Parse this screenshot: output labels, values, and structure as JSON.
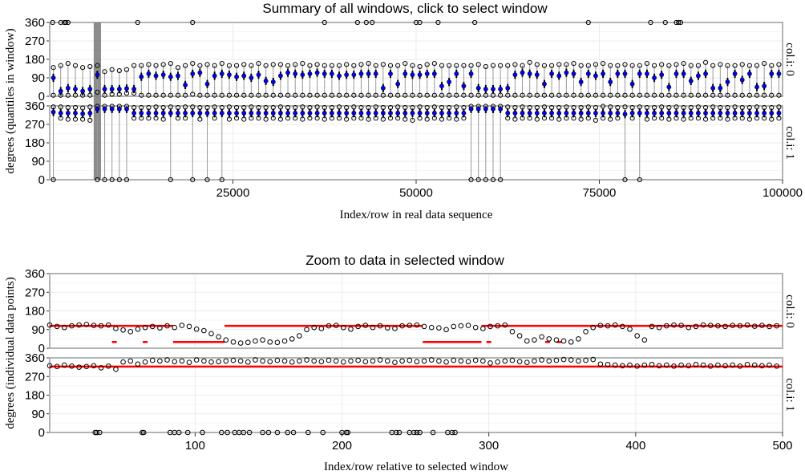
{
  "chart_data": [
    {
      "type": "box-summary",
      "title": "Summary of all windows, click to select window",
      "xlabel": "Index/row in real data sequence",
      "ylabel": "degrees (quantiles in window)",
      "xlim": [
        0,
        100000
      ],
      "ylim": [
        0,
        360
      ],
      "x_ticks": [
        "25000",
        "50000",
        "75000",
        "100000"
      ],
      "x_tick_values": [
        25000,
        50000,
        75000,
        100000
      ],
      "y_ticks": [
        "0",
        "90",
        "180",
        "270",
        "360"
      ],
      "y_tick_values": [
        0,
        90,
        180,
        270,
        360
      ],
      "grid": true,
      "selected_window": [
        6000,
        7000
      ],
      "window_step": 1000,
      "colors": {
        "median": "#0000ff",
        "whisker": "#999999",
        "selection": "#7f7f7f",
        "frame": "#b3b3b3"
      },
      "panels": [
        {
          "strip": "col.i: 0",
          "min": [
            5,
            5,
            5,
            5,
            5,
            5,
            20,
            5,
            10,
            10,
            15,
            15,
            5,
            5,
            5,
            5,
            5,
            5,
            5,
            10,
            5,
            5,
            5,
            5,
            5,
            5,
            5,
            5,
            5,
            5,
            5,
            5,
            5,
            5,
            5,
            5,
            5,
            5,
            5,
            5,
            5,
            5,
            5,
            5,
            5,
            5,
            5,
            5,
            5,
            5,
            5,
            5,
            5,
            5,
            5,
            5,
            5,
            5,
            5,
            5,
            5,
            5,
            5,
            5,
            5,
            5,
            5,
            5,
            5,
            5,
            5,
            5,
            5,
            5,
            5,
            5,
            5,
            5,
            5,
            5,
            5,
            5,
            5,
            5,
            5,
            5,
            5,
            5,
            5,
            5,
            5,
            5,
            5,
            5,
            5,
            5,
            5,
            5,
            5,
            5
          ],
          "median": [
            90,
            25,
            40,
            35,
            25,
            35,
            105,
            35,
            35,
            35,
            38,
            35,
            95,
            110,
            100,
            105,
            95,
            100,
            55,
            110,
            115,
            60,
            100,
            110,
            105,
            95,
            100,
            90,
            105,
            75,
            70,
            100,
            115,
            110,
            105,
            110,
            115,
            110,
            110,
            100,
            105,
            105,
            110,
            110,
            110,
            40,
            110,
            60,
            110,
            105,
            105,
            110,
            110,
            50,
            70,
            110,
            50,
            110,
            40,
            35,
            35,
            35,
            40,
            105,
            115,
            110,
            105,
            60,
            110,
            100,
            115,
            110,
            70,
            110,
            100,
            110,
            70,
            110,
            110,
            60,
            110,
            110,
            90,
            105,
            45,
            110,
            110,
            75,
            100,
            110,
            40,
            40,
            70,
            110,
            80,
            110,
            45,
            50,
            110,
            110
          ],
          "max": [
            140,
            150,
            160,
            150,
            140,
            145,
            150,
            120,
            130,
            125,
            130,
            150,
            150,
            155,
            150,
            155,
            160,
            140,
            150,
            160,
            150,
            155,
            150,
            160,
            150,
            150,
            155,
            150,
            160,
            150,
            155,
            155,
            150,
            155,
            160,
            150,
            155,
            150,
            150,
            150,
            155,
            150,
            155,
            160,
            150,
            155,
            150,
            150,
            160,
            150,
            145,
            155,
            160,
            150,
            150,
            150,
            150,
            150,
            155,
            145,
            150,
            150,
            150,
            155,
            150,
            165,
            155,
            150,
            150,
            155,
            155,
            160,
            150,
            150,
            155,
            160,
            150,
            150,
            155,
            150,
            150,
            160,
            150,
            155,
            150,
            155,
            160,
            150,
            150,
            165,
            150,
            155,
            150,
            150,
            155,
            150,
            150,
            160,
            150,
            155
          ],
          "outliers_360_at": [
            400,
            1500,
            2000,
            2200,
            2500,
            12000,
            19500,
            37500,
            42000,
            43200,
            44000,
            50000,
            50500,
            53000,
            58000,
            73500,
            82000,
            84000,
            85500,
            85800,
            86100
          ]
        },
        {
          "strip": "col.i: 1",
          "min": [
            0,
            300,
            295,
            295,
            295,
            290,
            0,
            0,
            0,
            0,
            0,
            300,
            300,
            300,
            300,
            295,
            0,
            300,
            300,
            0,
            295,
            0,
            300,
            0,
            295,
            300,
            295,
            300,
            300,
            295,
            300,
            295,
            300,
            300,
            295,
            300,
            300,
            295,
            300,
            300,
            295,
            300,
            300,
            295,
            300,
            295,
            300,
            300,
            295,
            290,
            300,
            295,
            300,
            295,
            300,
            295,
            300,
            0,
            0,
            0,
            0,
            0,
            300,
            295,
            300,
            300,
            295,
            300,
            300,
            295,
            300,
            300,
            295,
            300,
            290,
            300,
            295,
            300,
            0,
            300,
            0,
            295,
            300,
            300,
            295,
            300,
            295,
            300,
            300,
            295,
            300,
            300,
            295,
            300,
            300,
            295,
            300,
            300,
            295,
            300
          ],
          "median": [
            330,
            325,
            325,
            325,
            322,
            325,
            345,
            345,
            345,
            345,
            345,
            325,
            325,
            325,
            325,
            325,
            325,
            325,
            325,
            325,
            325,
            325,
            325,
            325,
            325,
            325,
            325,
            325,
            325,
            325,
            325,
            325,
            325,
            325,
            325,
            325,
            325,
            325,
            325,
            325,
            325,
            325,
            325,
            325,
            325,
            325,
            325,
            325,
            325,
            325,
            325,
            325,
            325,
            325,
            325,
            325,
            325,
            345,
            345,
            345,
            345,
            345,
            325,
            325,
            325,
            325,
            325,
            325,
            325,
            325,
            325,
            325,
            325,
            325,
            325,
            325,
            325,
            325,
            320,
            325,
            325,
            325,
            325,
            325,
            325,
            325,
            325,
            325,
            325,
            325,
            325,
            325,
            325,
            325,
            325,
            325,
            325,
            325,
            325,
            325
          ],
          "max": [
            355,
            355,
            352,
            352,
            350,
            355,
            358,
            358,
            358,
            358,
            358,
            352,
            352,
            352,
            355,
            352,
            355,
            352,
            355,
            355,
            352,
            352,
            355,
            352,
            355,
            352,
            352,
            355,
            352,
            352,
            352,
            355,
            352,
            352,
            355,
            352,
            355,
            352,
            352,
            355,
            352,
            355,
            352,
            352,
            355,
            352,
            352,
            355,
            352,
            352,
            355,
            352,
            355,
            352,
            352,
            355,
            352,
            358,
            358,
            358,
            358,
            358,
            355,
            352,
            355,
            352,
            352,
            355,
            352,
            352,
            355,
            352,
            352,
            355,
            352,
            358,
            355,
            352,
            355,
            352,
            355,
            352,
            352,
            355,
            352,
            355,
            352,
            352,
            355,
            352,
            355,
            352,
            352,
            355,
            352,
            352,
            355,
            352,
            352,
            355
          ]
        }
      ]
    },
    {
      "type": "scatter",
      "title": "Zoom to data in selected window",
      "xlabel": "Index/row relative to selected window",
      "ylabel": "degrees (individual data points)",
      "xlim": [
        1,
        500
      ],
      "ylim": [
        0,
        360
      ],
      "x_ticks": [
        "100",
        "200",
        "300",
        "400",
        "500"
      ],
      "x_tick_values": [
        100,
        200,
        300,
        400,
        500
      ],
      "y_ticks": [
        "0",
        "90",
        "180",
        "270",
        "360"
      ],
      "y_tick_values": [
        0,
        90,
        180,
        270,
        360
      ],
      "grid": true,
      "x_step": 5,
      "colors": {
        "points": "#000000",
        "mode_line": "#ff0000",
        "frame": "#b3b3b3"
      },
      "panels": [
        {
          "strip": "col.i: 0",
          "y": [
            112,
            105,
            100,
            108,
            112,
            115,
            110,
            108,
            112,
            95,
            88,
            80,
            92,
            100,
            105,
            98,
            108,
            100,
            110,
            105,
            92,
            85,
            70,
            55,
            40,
            30,
            25,
            28,
            35,
            40,
            30,
            28,
            35,
            45,
            60,
            90,
            100,
            95,
            108,
            110,
            100,
            92,
            105,
            110,
            100,
            108,
            98,
            95,
            108,
            110,
            112,
            105,
            100,
            98,
            90,
            105,
            108,
            110,
            100,
            95,
            105,
            108,
            112,
            80,
            60,
            35,
            40,
            55,
            45,
            40,
            35,
            30,
            45,
            80,
            100,
            110,
            108,
            112,
            105,
            92,
            60,
            40,
            105,
            100,
            108,
            112,
            110,
            100,
            105,
            112,
            110,
            108,
            105,
            110,
            108,
            112,
            106,
            110,
            105,
            108
          ],
          "mode_segments": [
            [
              1,
              85,
              108
            ],
            [
              85,
              120,
              30
            ],
            [
              120,
              255,
              108
            ],
            [
              255,
              295,
              30
            ],
            [
              295,
              500,
              108
            ]
          ],
          "mode_dots": [
            [
              45,
              30
            ],
            [
              66,
              30
            ],
            [
              300,
              30
            ],
            [
              340,
              30
            ],
            [
              348,
              30
            ]
          ]
        },
        {
          "strip": "col.i: 1",
          "y": [
            322,
            318,
            325,
            320,
            315,
            318,
            322,
            312,
            320,
            305,
            340,
            345,
            330,
            340,
            348,
            345,
            350,
            342,
            345,
            338,
            350,
            345,
            340,
            342,
            345,
            348,
            345,
            340,
            350,
            345,
            342,
            348,
            345,
            340,
            345,
            350,
            345,
            342,
            348,
            345,
            340,
            345,
            348,
            342,
            345,
            350,
            345,
            338,
            345,
            348,
            342,
            345,
            350,
            345,
            340,
            348,
            345,
            342,
            348,
            345,
            335,
            340,
            345,
            348,
            342,
            338,
            345,
            350,
            345,
            348,
            352,
            350,
            345,
            348,
            352,
            330,
            328,
            325,
            322,
            325,
            320,
            325,
            328,
            322,
            325,
            320,
            325,
            322,
            328,
            325,
            320,
            325,
            322,
            325,
            320,
            328,
            325,
            322,
            325,
            320
          ],
          "zeros_at": [
            32,
            33,
            35,
            64,
            65,
            83,
            86,
            89,
            95,
            105,
            118,
            122,
            127,
            130,
            133,
            137,
            146,
            150,
            156,
            163,
            167,
            177,
            187,
            200,
            203,
            204,
            234,
            237,
            239,
            246,
            249,
            251,
            253,
            262,
            272,
            275,
            277
          ],
          "mode_segments": [
            [
              1,
              500,
              318
            ]
          ]
        }
      ]
    }
  ]
}
